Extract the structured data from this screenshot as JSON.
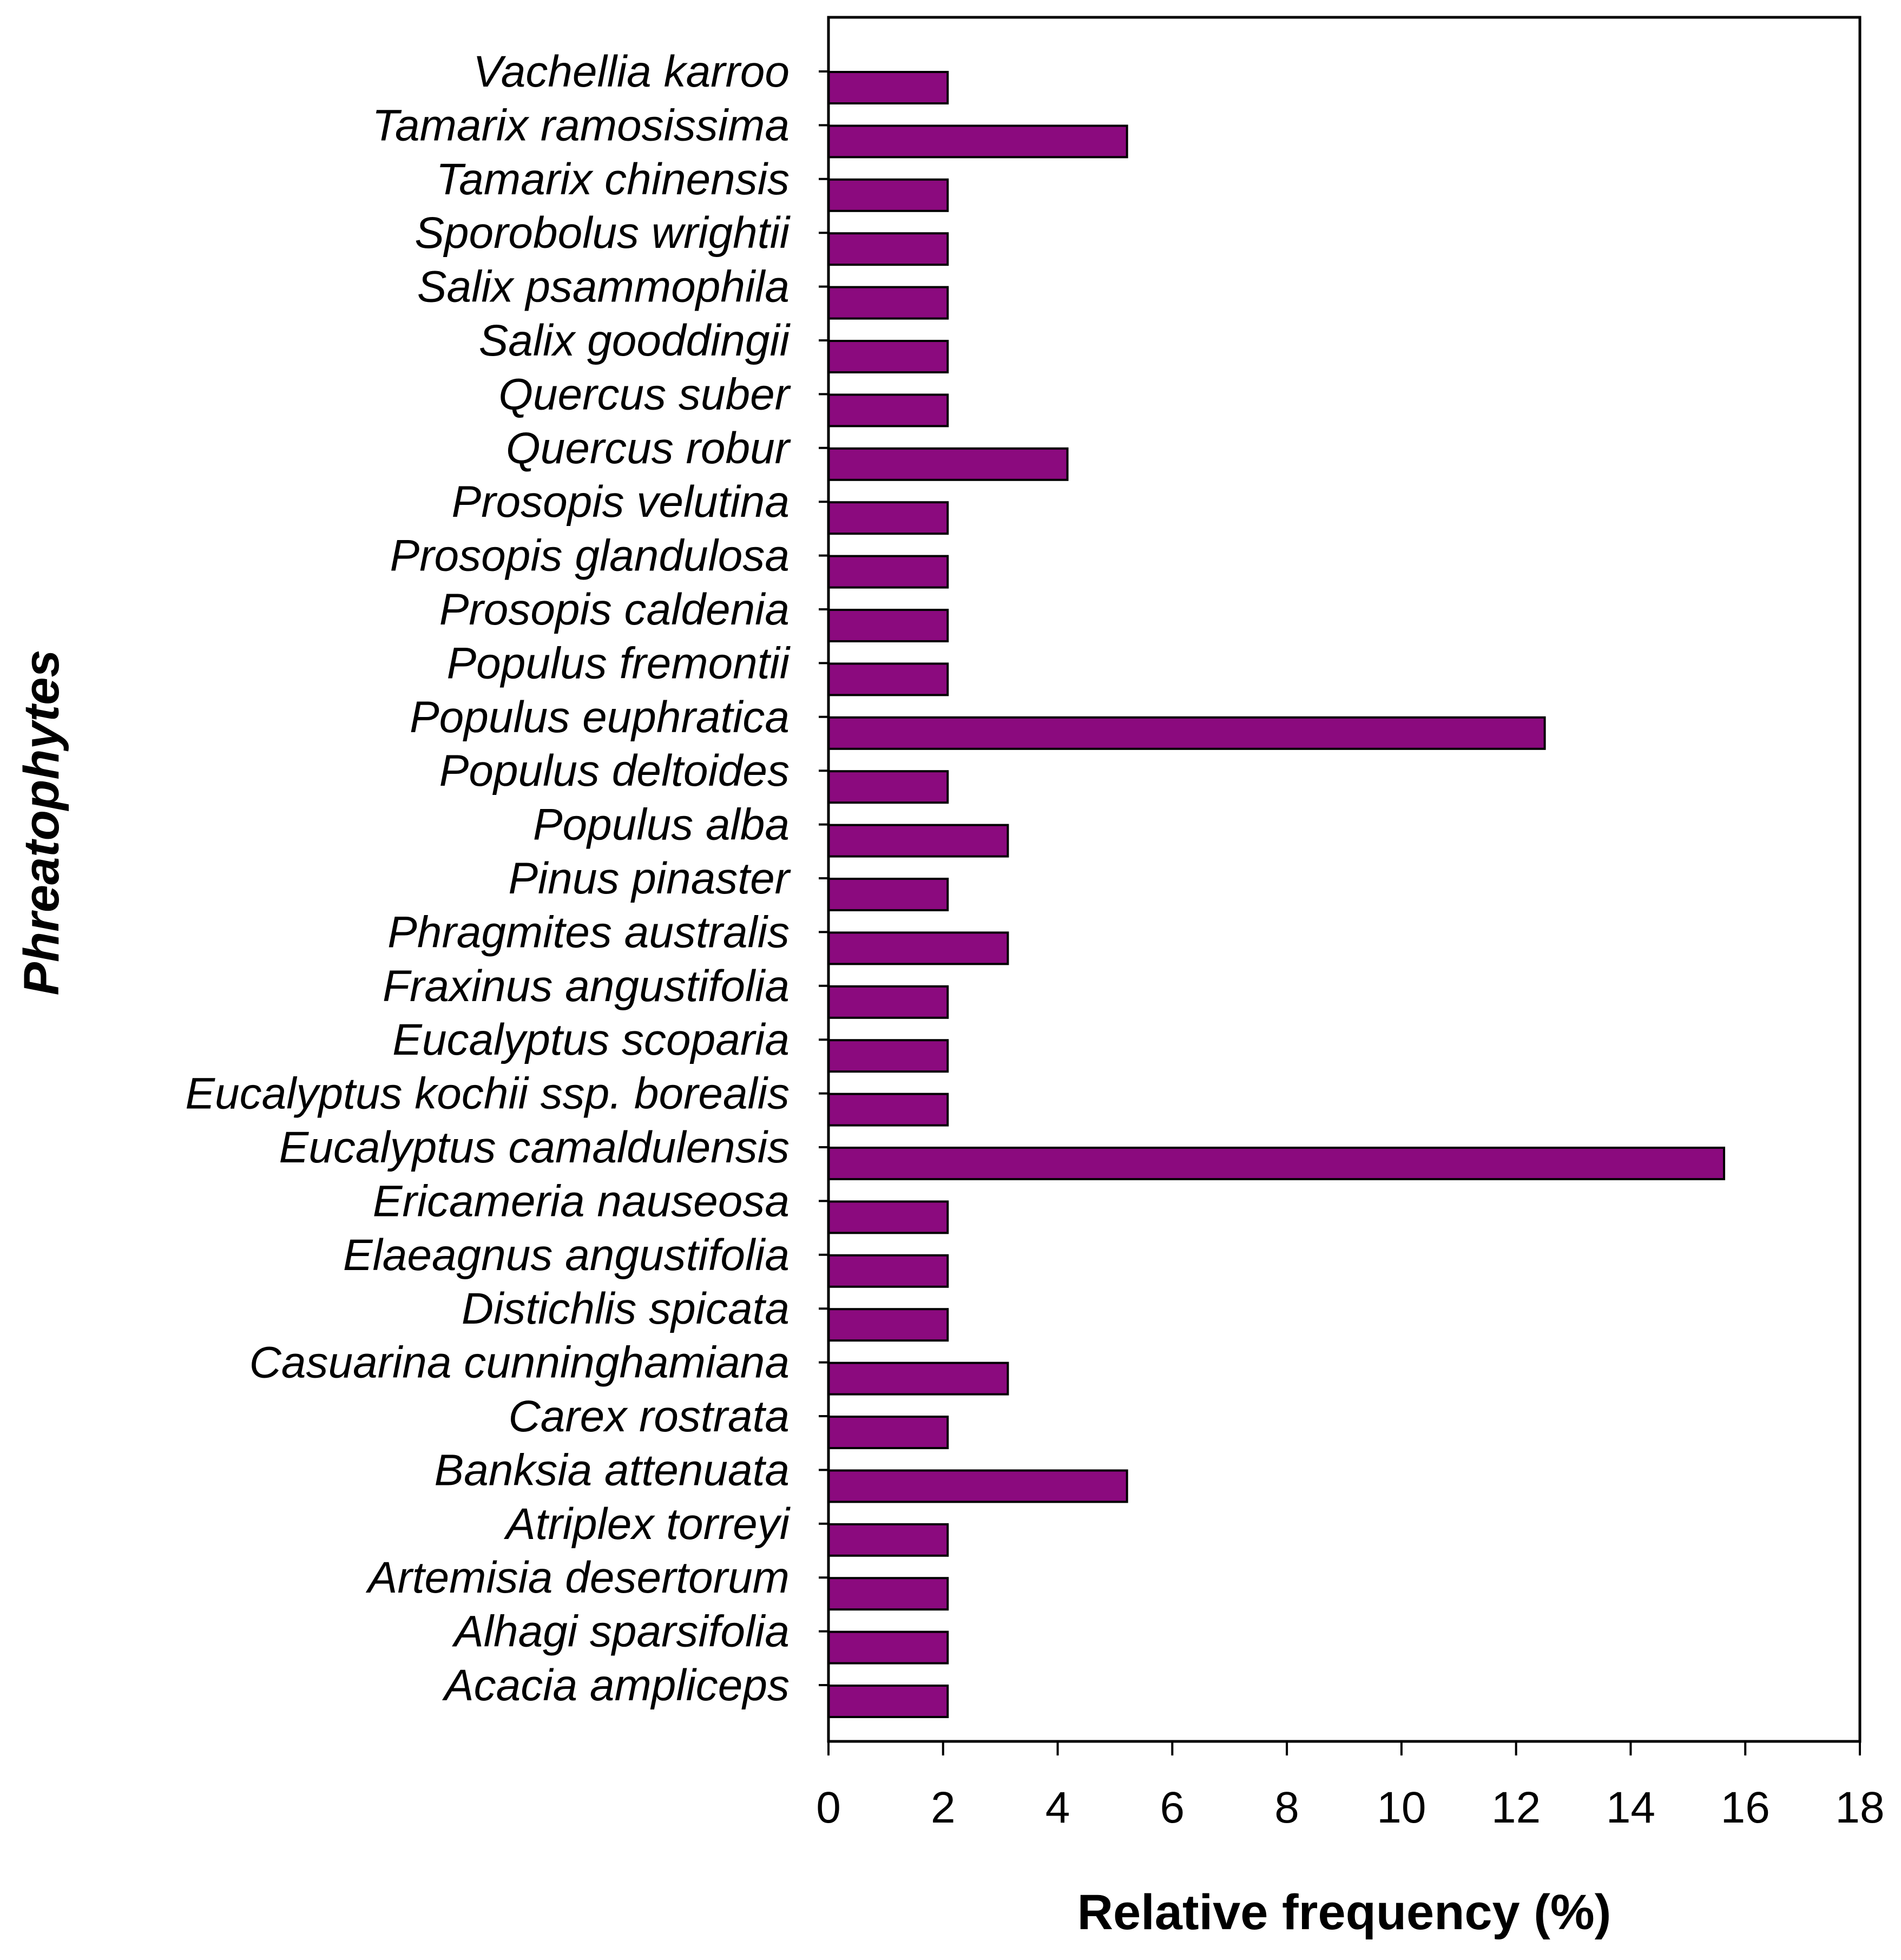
{
  "chart_data": {
    "type": "bar",
    "orientation": "horizontal",
    "xlabel": "Relative frequency (%)",
    "ylabel": "Phreatophytes",
    "xlim": [
      0,
      18
    ],
    "xticks": [
      0,
      2,
      4,
      6,
      8,
      10,
      12,
      14,
      16,
      18
    ],
    "grid": false,
    "bar_color": "#8B0A7E",
    "bar_edge_color": "#000000",
    "categories": [
      "Vachellia karroo",
      "Tamarix ramosissima",
      "Tamarix chinensis",
      "Sporobolus wrightii",
      "Salix psammophila",
      "Salix gooddingii",
      "Quercus suber",
      "Quercus robur",
      "Prosopis velutina",
      "Prosopis glandulosa",
      "Prosopis caldenia",
      "Populus fremontii",
      "Populus euphratica",
      "Populus deltoides",
      "Populus alba",
      "Pinus pinaster",
      "Phragmites australis",
      "Fraxinus angustifolia",
      "Eucalyptus scoparia",
      "Eucalyptus kochii ssp. borealis",
      "Eucalyptus camaldulensis",
      "Ericameria nauseosa",
      "Elaeagnus angustifolia",
      "Distichlis spicata",
      "Casuarina cunninghamiana",
      "Carex rostrata",
      "Banksia attenuata",
      "Atriplex torreyi",
      "Artemisia desertorum",
      "Alhagi sparsifolia",
      "Acacia ampliceps"
    ],
    "values": [
      2.08,
      5.21,
      2.08,
      2.08,
      2.08,
      2.08,
      2.08,
      4.17,
      2.08,
      2.08,
      2.08,
      2.08,
      12.5,
      2.08,
      3.13,
      2.08,
      3.13,
      2.08,
      2.08,
      2.08,
      15.63,
      2.08,
      2.08,
      2.08,
      3.13,
      2.08,
      5.21,
      2.08,
      2.08,
      2.08,
      2.08
    ]
  }
}
